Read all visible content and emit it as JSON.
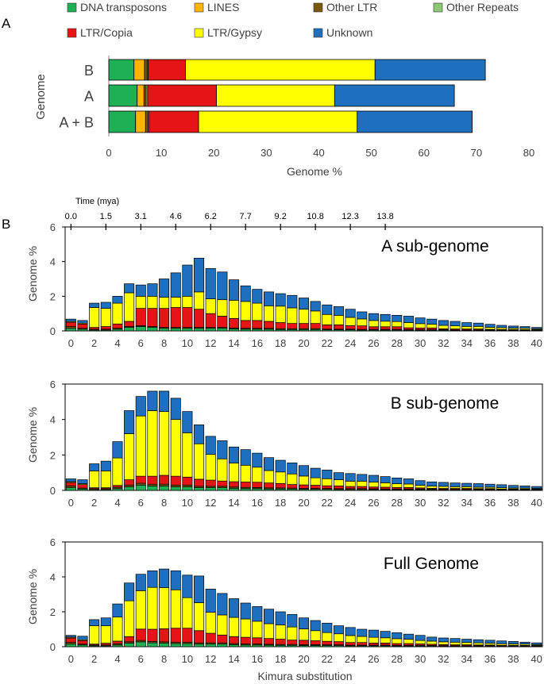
{
  "figure": {
    "panel_a_label": "A",
    "panel_b_label": "B"
  },
  "colors": {
    "DNA transposons": "#1FAF55",
    "LINES": "#FFB400",
    "Other LTR": "#7A5A0A",
    "Other Repeats": "#8CC873",
    "LTR/Copia": "#E51515",
    "LTR/Gypsy": "#FFFF00",
    "Unknown": "#1F6FBF"
  },
  "chart_data": [
    {
      "type": "bar",
      "orientation": "horizontal-stacked",
      "legend": [
        "DNA transposons",
        "LINES",
        "Other LTR",
        "Other Repeats",
        "LTR/Copia",
        "LTR/Gypsy",
        "Unknown"
      ],
      "categories": [
        "B",
        "A",
        "A + B"
      ],
      "series": [
        {
          "name": "DNA transposons",
          "values": [
            4.8,
            5.4,
            5.1
          ]
        },
        {
          "name": "LINES",
          "values": [
            2.0,
            1.3,
            1.9
          ]
        },
        {
          "name": "Other LTR",
          "values": [
            0.5,
            0.4,
            0.5
          ]
        },
        {
          "name": "Other Repeats",
          "values": [
            0.2,
            0.3,
            0.2
          ]
        },
        {
          "name": "LTR/Copia",
          "values": [
            7.1,
            13.1,
            9.4
          ]
        },
        {
          "name": "LTR/Gypsy",
          "values": [
            36.1,
            22.5,
            30.2
          ]
        },
        {
          "name": "Unknown",
          "values": [
            21.0,
            22.8,
            21.9
          ]
        }
      ],
      "xlabel": "Genome %",
      "ylabel": "Genome",
      "xlim": [
        0,
        80
      ],
      "xticks": [
        "0",
        "10",
        "20",
        "30",
        "40",
        "50",
        "60",
        "70",
        "80"
      ]
    },
    {
      "type": "bar",
      "orientation": "vertical-stacked",
      "title": "A sub-genome",
      "top_axis_label": "Time (mya)",
      "top_ticks": [
        "0.0",
        "1.5",
        "3.1",
        "4.6",
        "6.2",
        "7.7",
        "9.2",
        "10.8",
        "12.3",
        "13.8"
      ],
      "top_tick_at_kimura": [
        0,
        3,
        6,
        9,
        12,
        15,
        18,
        21,
        24,
        27
      ],
      "ylabel": "Genome %",
      "ylim": [
        0,
        6
      ],
      "yticks": [
        "0",
        "2",
        "4",
        "6"
      ],
      "xticks": [
        "0",
        "2",
        "4",
        "6",
        "8",
        "10",
        "12",
        "14",
        "16",
        "18",
        "20",
        "22",
        "24",
        "26",
        "28",
        "30",
        "32",
        "34",
        "36",
        "38",
        "40"
      ],
      "totals": [
        0.68,
        0.6,
        1.6,
        1.65,
        2.0,
        2.72,
        2.65,
        2.72,
        3.0,
        3.35,
        3.8,
        4.2,
        3.6,
        3.4,
        2.95,
        2.6,
        2.4,
        2.25,
        2.15,
        2.05,
        1.9,
        1.7,
        1.5,
        1.4,
        1.25,
        1.1,
        1.0,
        0.95,
        0.9,
        0.85,
        0.75,
        0.68,
        0.6,
        0.55,
        0.48,
        0.45,
        0.38,
        0.32,
        0.28,
        0.25,
        0.2
      ],
      "dna": [
        0.15,
        0.1,
        0.05,
        0.05,
        0.1,
        0.2,
        0.25,
        0.2,
        0.15,
        0.15,
        0.15,
        0.15,
        0.15,
        0.15,
        0.12,
        0.1,
        0.1,
        0.1,
        0.08,
        0.08,
        0.08,
        0.08,
        0.06,
        0.06,
        0.06,
        0.05,
        0.05,
        0.05,
        0.05,
        0.04,
        0.04,
        0.04,
        0.04,
        0.03,
        0.03,
        0.03,
        0.03,
        0.02,
        0.02,
        0.02,
        0.02
      ],
      "other": [
        0.1,
        0.05,
        0.05,
        0.05,
        0.05,
        0.05,
        0.05,
        0.05,
        0.05,
        0.05,
        0.05,
        0.05,
        0.05,
        0.05,
        0.05,
        0.05,
        0.05,
        0.05,
        0.05,
        0.05,
        0.05,
        0.05,
        0.04,
        0.04,
        0.04,
        0.04,
        0.04,
        0.04,
        0.04,
        0.04,
        0.03,
        0.03,
        0.03,
        0.03,
        0.03,
        0.03,
        0.03,
        0.03,
        0.03,
        0.03,
        0.03
      ],
      "copia": [
        0.25,
        0.25,
        0.1,
        0.15,
        0.25,
        0.3,
        1.0,
        1.05,
        1.1,
        1.15,
        1.15,
        1.05,
        0.8,
        0.65,
        0.55,
        0.45,
        0.45,
        0.4,
        0.35,
        0.3,
        0.3,
        0.3,
        0.25,
        0.25,
        0.2,
        0.2,
        0.15,
        0.15,
        0.15,
        0.1,
        0.1,
        0.1,
        0.05,
        0.05,
        0.05,
        0.05,
        0.03,
        0.03,
        0.03,
        0.02,
        0.02
      ],
      "gypsy": [
        0.05,
        0.05,
        1.15,
        1.05,
        1.2,
        1.65,
        0.7,
        0.7,
        0.65,
        0.6,
        0.65,
        1.0,
        0.85,
        0.95,
        1.05,
        1.1,
        1.0,
        0.9,
        0.95,
        0.9,
        0.82,
        0.72,
        0.6,
        0.55,
        0.48,
        0.4,
        0.36,
        0.32,
        0.3,
        0.3,
        0.25,
        0.22,
        0.2,
        0.18,
        0.15,
        0.15,
        0.12,
        0.1,
        0.08,
        0.08,
        0.05
      ]
    },
    {
      "type": "bar",
      "orientation": "vertical-stacked",
      "title": "B sub-genome",
      "ylabel": "Genome %",
      "ylim": [
        0,
        6
      ],
      "yticks": [
        "0",
        "2",
        "4",
        "6"
      ],
      "xticks": [
        "0",
        "2",
        "4",
        "6",
        "8",
        "10",
        "12",
        "14",
        "16",
        "18",
        "20",
        "22",
        "24",
        "26",
        "28",
        "30",
        "32",
        "34",
        "36",
        "38",
        "40"
      ],
      "totals": [
        0.65,
        0.6,
        1.5,
        1.65,
        2.75,
        4.5,
        5.3,
        5.6,
        5.6,
        5.2,
        4.45,
        3.7,
        3.05,
        2.8,
        2.45,
        2.3,
        2.1,
        1.85,
        1.7,
        1.55,
        1.4,
        1.25,
        1.15,
        1.0,
        0.95,
        0.9,
        0.85,
        0.78,
        0.7,
        0.65,
        0.55,
        0.48,
        0.45,
        0.42,
        0.4,
        0.38,
        0.35,
        0.32,
        0.28,
        0.25,
        0.22
      ],
      "dna": [
        0.15,
        0.08,
        0.05,
        0.05,
        0.1,
        0.2,
        0.3,
        0.25,
        0.25,
        0.2,
        0.2,
        0.15,
        0.15,
        0.15,
        0.12,
        0.1,
        0.1,
        0.08,
        0.08,
        0.08,
        0.06,
        0.06,
        0.06,
        0.05,
        0.05,
        0.05,
        0.05,
        0.04,
        0.04,
        0.04,
        0.04,
        0.04,
        0.03,
        0.03,
        0.03,
        0.03,
        0.03,
        0.02,
        0.02,
        0.02,
        0.02
      ],
      "other": [
        0.1,
        0.05,
        0.05,
        0.05,
        0.08,
        0.1,
        0.1,
        0.1,
        0.1,
        0.1,
        0.1,
        0.08,
        0.08,
        0.08,
        0.07,
        0.07,
        0.06,
        0.06,
        0.06,
        0.05,
        0.05,
        0.05,
        0.05,
        0.05,
        0.05,
        0.05,
        0.04,
        0.04,
        0.04,
        0.04,
        0.04,
        0.03,
        0.03,
        0.03,
        0.03,
        0.03,
        0.03,
        0.03,
        0.03,
        0.03,
        0.03
      ],
      "copia": [
        0.2,
        0.2,
        0.05,
        0.05,
        0.1,
        0.3,
        0.4,
        0.45,
        0.5,
        0.5,
        0.45,
        0.4,
        0.35,
        0.3,
        0.3,
        0.3,
        0.3,
        0.28,
        0.25,
        0.2,
        0.2,
        0.18,
        0.15,
        0.15,
        0.12,
        0.12,
        0.1,
        0.1,
        0.08,
        0.08,
        0.06,
        0.05,
        0.05,
        0.05,
        0.05,
        0.04,
        0.04,
        0.03,
        0.03,
        0.03,
        0.02
      ],
      "gypsy": [
        0.05,
        0.05,
        0.95,
        0.95,
        1.55,
        2.6,
        3.4,
        3.7,
        3.6,
        3.2,
        2.5,
        2.0,
        1.45,
        1.25,
        1.05,
        0.95,
        0.85,
        0.7,
        0.65,
        0.6,
        0.5,
        0.42,
        0.4,
        0.35,
        0.3,
        0.3,
        0.28,
        0.25,
        0.22,
        0.2,
        0.15,
        0.12,
        0.12,
        0.1,
        0.1,
        0.08,
        0.08,
        0.07,
        0.05,
        0.05,
        0.04
      ]
    },
    {
      "type": "bar",
      "orientation": "vertical-stacked",
      "title": "Full Genome",
      "ylabel": "Genome %",
      "xlabel": "Kimura substitution",
      "ylim": [
        0,
        6
      ],
      "yticks": [
        "0",
        "2",
        "4",
        "6"
      ],
      "xticks": [
        "0",
        "2",
        "4",
        "6",
        "8",
        "10",
        "12",
        "14",
        "16",
        "18",
        "20",
        "22",
        "24",
        "26",
        "28",
        "30",
        "32",
        "34",
        "36",
        "38",
        "40"
      ],
      "totals": [
        0.65,
        0.6,
        1.55,
        1.65,
        2.45,
        3.65,
        4.15,
        4.35,
        4.45,
        4.35,
        4.1,
        4.05,
        3.3,
        3.05,
        2.75,
        2.5,
        2.3,
        2.15,
        2.0,
        1.85,
        1.65,
        1.5,
        1.35,
        1.2,
        1.1,
        1.0,
        0.95,
        0.88,
        0.8,
        0.72,
        0.65,
        0.55,
        0.5,
        0.47,
        0.43,
        0.4,
        0.37,
        0.33,
        0.3,
        0.26,
        0.22
      ],
      "dna": [
        0.15,
        0.1,
        0.05,
        0.05,
        0.1,
        0.2,
        0.28,
        0.22,
        0.2,
        0.18,
        0.18,
        0.15,
        0.15,
        0.15,
        0.12,
        0.1,
        0.1,
        0.09,
        0.08,
        0.08,
        0.07,
        0.07,
        0.06,
        0.06,
        0.05,
        0.05,
        0.05,
        0.05,
        0.04,
        0.04,
        0.04,
        0.04,
        0.03,
        0.03,
        0.03,
        0.03,
        0.03,
        0.02,
        0.02,
        0.02,
        0.02
      ],
      "other": [
        0.1,
        0.05,
        0.05,
        0.05,
        0.07,
        0.08,
        0.08,
        0.08,
        0.08,
        0.08,
        0.08,
        0.07,
        0.07,
        0.07,
        0.06,
        0.06,
        0.06,
        0.05,
        0.05,
        0.05,
        0.05,
        0.05,
        0.05,
        0.05,
        0.04,
        0.04,
        0.04,
        0.04,
        0.04,
        0.04,
        0.04,
        0.03,
        0.03,
        0.03,
        0.03,
        0.03,
        0.03,
        0.03,
        0.03,
        0.03,
        0.03
      ],
      "copia": [
        0.25,
        0.2,
        0.05,
        0.1,
        0.15,
        0.3,
        0.65,
        0.7,
        0.75,
        0.8,
        0.8,
        0.7,
        0.55,
        0.45,
        0.4,
        0.38,
        0.35,
        0.33,
        0.3,
        0.25,
        0.25,
        0.22,
        0.2,
        0.18,
        0.15,
        0.15,
        0.12,
        0.12,
        0.1,
        0.1,
        0.08,
        0.07,
        0.06,
        0.05,
        0.05,
        0.04,
        0.04,
        0.03,
        0.03,
        0.03,
        0.02
      ],
      "gypsy": [
        0.05,
        0.05,
        1.05,
        1.0,
        1.38,
        2.05,
        2.2,
        2.4,
        2.35,
        2.2,
        1.75,
        1.6,
        1.2,
        1.15,
        1.1,
        1.05,
        0.95,
        0.85,
        0.82,
        0.75,
        0.65,
        0.58,
        0.5,
        0.45,
        0.4,
        0.35,
        0.33,
        0.3,
        0.28,
        0.25,
        0.2,
        0.18,
        0.16,
        0.15,
        0.13,
        0.12,
        0.1,
        0.09,
        0.08,
        0.07,
        0.05
      ]
    }
  ]
}
